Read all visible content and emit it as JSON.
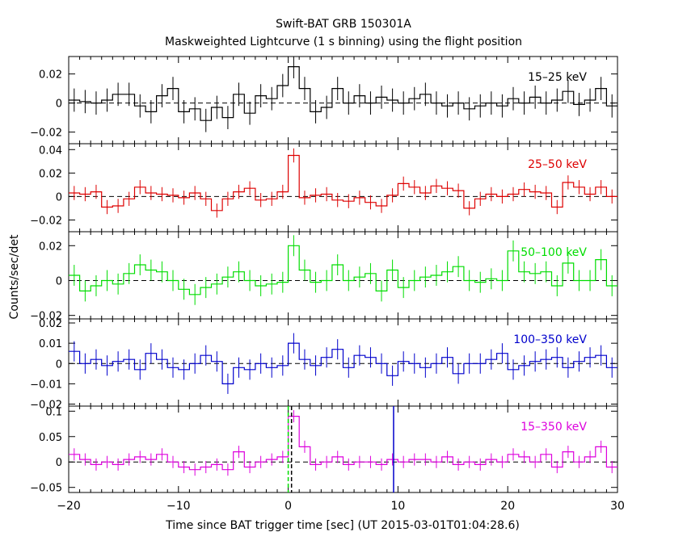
{
  "title": "Swift-BAT GRB 150301A",
  "subtitle": "Maskweighted Lightcurve (1 s binning) using the flight position",
  "xlabel": "Time since BAT trigger time [sec] (UT 2015-03-01T01:04:28.6)",
  "ylabel": "Counts/sec/det",
  "colors": {
    "black": "#000000",
    "red": "#dd0000",
    "green": "#00dd00",
    "blue": "#0000cc",
    "magenta": "#dd00dd"
  },
  "chart_data": [
    {
      "type": "line",
      "series": [
        {
          "name": "15-25 keV",
          "x": [
            -20,
            -19,
            -18,
            -17,
            -16,
            -15,
            -14,
            -13,
            -12,
            -11,
            -10,
            -9,
            -8,
            -7,
            -6,
            -5,
            -4,
            -3,
            -2,
            -1,
            0,
            1,
            2,
            3,
            4,
            5,
            6,
            7,
            8,
            9,
            10,
            11,
            12,
            13,
            14,
            15,
            16,
            17,
            18,
            19,
            20,
            21,
            22,
            23,
            24,
            25,
            26,
            27,
            28,
            29
          ],
          "y": [
            0.002,
            0.001,
            0,
            0.002,
            0.006,
            0.006,
            -0.002,
            -0.006,
            0.005,
            0.01,
            -0.006,
            -0.004,
            -0.012,
            -0.003,
            -0.01,
            0.006,
            -0.007,
            0.005,
            0.003,
            0.012,
            0.025,
            0.01,
            -0.006,
            -0.003,
            0.01,
            0,
            0.005,
            0,
            0.004,
            0.002,
            0,
            0.003,
            0.006,
            0,
            -0.002,
            0,
            -0.004,
            -0.002,
            0,
            -0.002,
            0.003,
            0,
            0.004,
            0,
            0.002,
            0.008,
            -0.001,
            0.002,
            0.01,
            -0.002
          ],
          "err": [
            0.008,
            0.008,
            0.008,
            0.008,
            0.008,
            0.008,
            0.008,
            0.008,
            0.008,
            0.008,
            0.008,
            0.008,
            0.008,
            0.008,
            0.008,
            0.008,
            0.008,
            0.008,
            0.008,
            0.008,
            0.008,
            0.008,
            0.008,
            0.008,
            0.008,
            0.008,
            0.008,
            0.008,
            0.008,
            0.008,
            0.008,
            0.008,
            0.008,
            0.008,
            0.008,
            0.008,
            0.008,
            0.008,
            0.008,
            0.008,
            0.008,
            0.008,
            0.008,
            0.008,
            0.008,
            0.008,
            0.008,
            0.008,
            0.008,
            0.008
          ],
          "color": "#000000"
        }
      ],
      "xlim": [
        -20,
        30
      ],
      "ylim": [
        -0.028,
        0.032
      ],
      "yticks": [
        -0.02,
        0,
        0.02
      ],
      "ytick_labels": [
        "−0.02",
        "0",
        "0.02"
      ]
    },
    {
      "type": "line",
      "series": [
        {
          "name": "25-50 keV",
          "x": [
            -20,
            -19,
            -18,
            -17,
            -16,
            -15,
            -14,
            -13,
            -12,
            -11,
            -10,
            -9,
            -8,
            -7,
            -6,
            -5,
            -4,
            -3,
            -2,
            -1,
            0,
            1,
            2,
            3,
            4,
            5,
            6,
            7,
            8,
            9,
            10,
            11,
            12,
            13,
            14,
            15,
            16,
            17,
            18,
            19,
            20,
            21,
            22,
            23,
            24,
            25,
            26,
            27,
            28,
            29
          ],
          "y": [
            0.003,
            0.002,
            0.004,
            -0.009,
            -0.008,
            -0.002,
            0.008,
            0.003,
            0.002,
            0.001,
            -0.001,
            0.003,
            -0.002,
            -0.012,
            -0.002,
            0.004,
            0.007,
            -0.003,
            -0.002,
            0.004,
            0.035,
            -0.001,
            0.001,
            0.002,
            -0.003,
            -0.004,
            -0.001,
            -0.005,
            -0.008,
            0.001,
            0.011,
            0.008,
            0.003,
            0.009,
            0.007,
            0.005,
            -0.01,
            -0.002,
            0.002,
            0,
            0.002,
            0.006,
            0.004,
            0.003,
            -0.009,
            0.012,
            0.008,
            0.002,
            0.008,
            0
          ],
          "err": [
            0.006,
            0.006,
            0.006,
            0.006,
            0.006,
            0.006,
            0.006,
            0.006,
            0.006,
            0.006,
            0.006,
            0.006,
            0.006,
            0.006,
            0.006,
            0.006,
            0.006,
            0.006,
            0.006,
            0.006,
            0.006,
            0.006,
            0.006,
            0.006,
            0.006,
            0.006,
            0.006,
            0.006,
            0.006,
            0.006,
            0.006,
            0.006,
            0.006,
            0.006,
            0.006,
            0.006,
            0.006,
            0.006,
            0.006,
            0.006,
            0.006,
            0.006,
            0.006,
            0.006,
            0.006,
            0.006,
            0.006,
            0.006,
            0.006,
            0.006
          ],
          "color": "#dd0000"
        }
      ],
      "xlim": [
        -20,
        30
      ],
      "ylim": [
        -0.03,
        0.045
      ],
      "yticks": [
        -0.02,
        0,
        0.02,
        0.04
      ],
      "ytick_labels": [
        "−0.02",
        "0",
        "0.02",
        "0.04"
      ]
    },
    {
      "type": "line",
      "series": [
        {
          "name": "50-100 keV",
          "x": [
            -20,
            -19,
            -18,
            -17,
            -16,
            -15,
            -14,
            -13,
            -12,
            -11,
            -10,
            -9,
            -8,
            -7,
            -6,
            -5,
            -4,
            -3,
            -2,
            -1,
            0,
            1,
            2,
            3,
            4,
            5,
            6,
            7,
            8,
            9,
            10,
            11,
            12,
            13,
            14,
            15,
            16,
            17,
            18,
            19,
            20,
            21,
            22,
            23,
            24,
            25,
            26,
            27,
            28,
            29
          ],
          "y": [
            0.003,
            -0.006,
            -0.003,
            0,
            -0.002,
            0.004,
            0.009,
            0.006,
            0.005,
            0,
            -0.005,
            -0.008,
            -0.004,
            -0.002,
            0.002,
            0.005,
            0,
            -0.003,
            -0.002,
            -0.001,
            0.02,
            0.006,
            -0.001,
            0,
            0.009,
            0,
            0.002,
            0.004,
            -0.006,
            0.006,
            -0.004,
            0,
            0.002,
            0.003,
            0.005,
            0.008,
            0,
            -0.001,
            0.001,
            0,
            0.017,
            0.005,
            0.004,
            0.005,
            -0.003,
            0.01,
            0,
            0,
            0.012,
            -0.003
          ],
          "err": [
            0.006,
            0.006,
            0.006,
            0.006,
            0.006,
            0.006,
            0.006,
            0.006,
            0.006,
            0.006,
            0.006,
            0.006,
            0.006,
            0.006,
            0.006,
            0.006,
            0.006,
            0.006,
            0.006,
            0.006,
            0.006,
            0.006,
            0.006,
            0.006,
            0.006,
            0.006,
            0.006,
            0.006,
            0.006,
            0.006,
            0.006,
            0.006,
            0.006,
            0.006,
            0.006,
            0.006,
            0.006,
            0.006,
            0.006,
            0.006,
            0.006,
            0.006,
            0.006,
            0.006,
            0.006,
            0.006,
            0.006,
            0.006,
            0.006,
            0.006
          ],
          "color": "#00dd00"
        }
      ],
      "xlim": [
        -20,
        30
      ],
      "ylim": [
        -0.022,
        0.028
      ],
      "yticks": [
        -0.02,
        0,
        0.02
      ],
      "ytick_labels": [
        "−0.02",
        "0",
        "0.02"
      ]
    },
    {
      "type": "line",
      "series": [
        {
          "name": "100-350 keV",
          "x": [
            -20,
            -19,
            -18,
            -17,
            -16,
            -15,
            -14,
            -13,
            -12,
            -11,
            -10,
            -9,
            -8,
            -7,
            -6,
            -5,
            -4,
            -3,
            -2,
            -1,
            0,
            1,
            2,
            3,
            4,
            5,
            6,
            7,
            8,
            9,
            10,
            11,
            12,
            13,
            14,
            15,
            16,
            17,
            18,
            19,
            20,
            21,
            22,
            23,
            24,
            25,
            26,
            27,
            28,
            29
          ],
          "y": [
            0.006,
            0,
            0.002,
            -0.001,
            0.001,
            0.002,
            -0.003,
            0.005,
            0.002,
            -0.002,
            -0.003,
            0,
            0.004,
            0.001,
            -0.01,
            -0.002,
            -0.003,
            0,
            -0.002,
            -0.001,
            0.01,
            0.002,
            -0.001,
            0.003,
            0.007,
            -0.002,
            0.004,
            0.003,
            0,
            -0.006,
            0.001,
            0,
            -0.002,
            0,
            0.003,
            -0.005,
            0,
            0,
            0.002,
            0.005,
            -0.003,
            -0.001,
            0.001,
            0.002,
            0.003,
            -0.002,
            0.001,
            0.003,
            0.004,
            -0.002
          ],
          "err": [
            0.005,
            0.005,
            0.005,
            0.005,
            0.005,
            0.005,
            0.005,
            0.005,
            0.005,
            0.005,
            0.005,
            0.005,
            0.005,
            0.005,
            0.005,
            0.005,
            0.005,
            0.005,
            0.005,
            0.005,
            0.005,
            0.005,
            0.005,
            0.005,
            0.005,
            0.005,
            0.005,
            0.005,
            0.005,
            0.005,
            0.005,
            0.005,
            0.005,
            0.005,
            0.005,
            0.005,
            0.005,
            0.005,
            0.005,
            0.005,
            0.005,
            0.005,
            0.005,
            0.005,
            0.005,
            0.005,
            0.005,
            0.005,
            0.005,
            0.005
          ],
          "color": "#0000cc"
        }
      ],
      "xlim": [
        -20,
        30
      ],
      "ylim": [
        -0.021,
        0.022
      ],
      "yticks": [
        -0.02,
        -0.01,
        0,
        0.01,
        0.02
      ],
      "ytick_labels": [
        "−0.02",
        "−0.01",
        "0",
        "0.01",
        "0.02"
      ]
    },
    {
      "type": "line",
      "series": [
        {
          "name": "15-350 keV",
          "x": [
            -20,
            -19,
            -18,
            -17,
            -16,
            -15,
            -14,
            -13,
            -12,
            -11,
            -10,
            -9,
            -8,
            -7,
            -6,
            -5,
            -4,
            -3,
            -2,
            -1,
            0,
            1,
            2,
            3,
            4,
            5,
            6,
            7,
            8,
            9,
            10,
            11,
            12,
            13,
            14,
            15,
            16,
            17,
            18,
            19,
            20,
            21,
            22,
            23,
            24,
            25,
            26,
            27,
            28,
            29
          ],
          "y": [
            0.015,
            0.005,
            -0.005,
            0,
            -0.005,
            0.005,
            0.01,
            0.005,
            0.015,
            0,
            -0.01,
            -0.015,
            -0.01,
            -0.005,
            -0.015,
            0.02,
            -0.01,
            0,
            0.005,
            0.01,
            0.09,
            0.03,
            -0.005,
            0,
            0.01,
            -0.005,
            0,
            0,
            -0.005,
            0.005,
            0,
            0.005,
            0.005,
            0,
            0.01,
            -0.005,
            0,
            -0.005,
            0.005,
            0,
            0.015,
            0.01,
            0,
            0.015,
            -0.01,
            0.02,
            0,
            0.01,
            0.03,
            -0.01
          ],
          "err": [
            0.012,
            0.012,
            0.012,
            0.012,
            0.012,
            0.012,
            0.012,
            0.012,
            0.012,
            0.012,
            0.012,
            0.012,
            0.012,
            0.012,
            0.012,
            0.012,
            0.012,
            0.012,
            0.012,
            0.012,
            0.012,
            0.012,
            0.012,
            0.012,
            0.012,
            0.012,
            0.012,
            0.012,
            0.012,
            0.012,
            0.012,
            0.012,
            0.012,
            0.012,
            0.012,
            0.012,
            0.012,
            0.012,
            0.012,
            0.012,
            0.012,
            0.012,
            0.012,
            0.012,
            0.012,
            0.012,
            0.012,
            0.012,
            0.012,
            0.012
          ],
          "color": "#dd00dd"
        }
      ],
      "xlim": [
        -20,
        30
      ],
      "ylim": [
        -0.06,
        0.11
      ],
      "yticks": [
        -0.05,
        0,
        0.05,
        0.1
      ],
      "ytick_labels": [
        "−0.05",
        "0",
        "0.05",
        "0.1"
      ],
      "markers": [
        {
          "x": 0.0,
          "color": "#00dd00",
          "style": "dashed"
        },
        {
          "x": 0.3,
          "color": "#000000",
          "style": "dashed"
        },
        {
          "x": 9.6,
          "color": "#0000cc",
          "style": "solid"
        }
      ]
    }
  ],
  "xticks": [
    -20,
    -10,
    0,
    10,
    20,
    30
  ],
  "xtick_labels": [
    "−20",
    "−10",
    "0",
    "10",
    "20",
    "30"
  ]
}
